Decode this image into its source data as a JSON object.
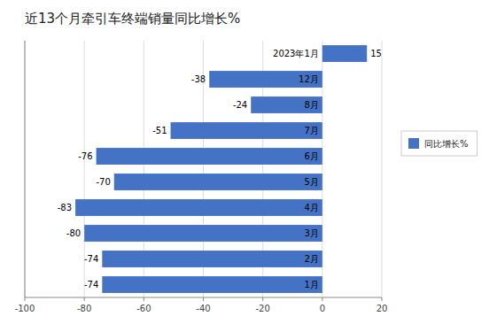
{
  "chart_data": {
    "type": "bar",
    "orientation": "horizontal",
    "title": "近13个月牵引车终端销量同比增长%",
    "categories": [
      "1月",
      "2月",
      "3月",
      "4月",
      "5月",
      "6月",
      "7月",
      "8月",
      "12月",
      "2023年1月"
    ],
    "series": [
      {
        "name": "同比增长%",
        "color": "#4472C4",
        "values": [
          -74,
          -74,
          -80,
          -83,
          -70,
          -76,
          -51,
          -24,
          -38,
          15
        ]
      }
    ],
    "xlim": [
      -100,
      20
    ],
    "xticks": [
      -100,
      -80,
      -60,
      -40,
      -20,
      0,
      20
    ],
    "grid": true,
    "legend": "right",
    "data_labels": true
  }
}
